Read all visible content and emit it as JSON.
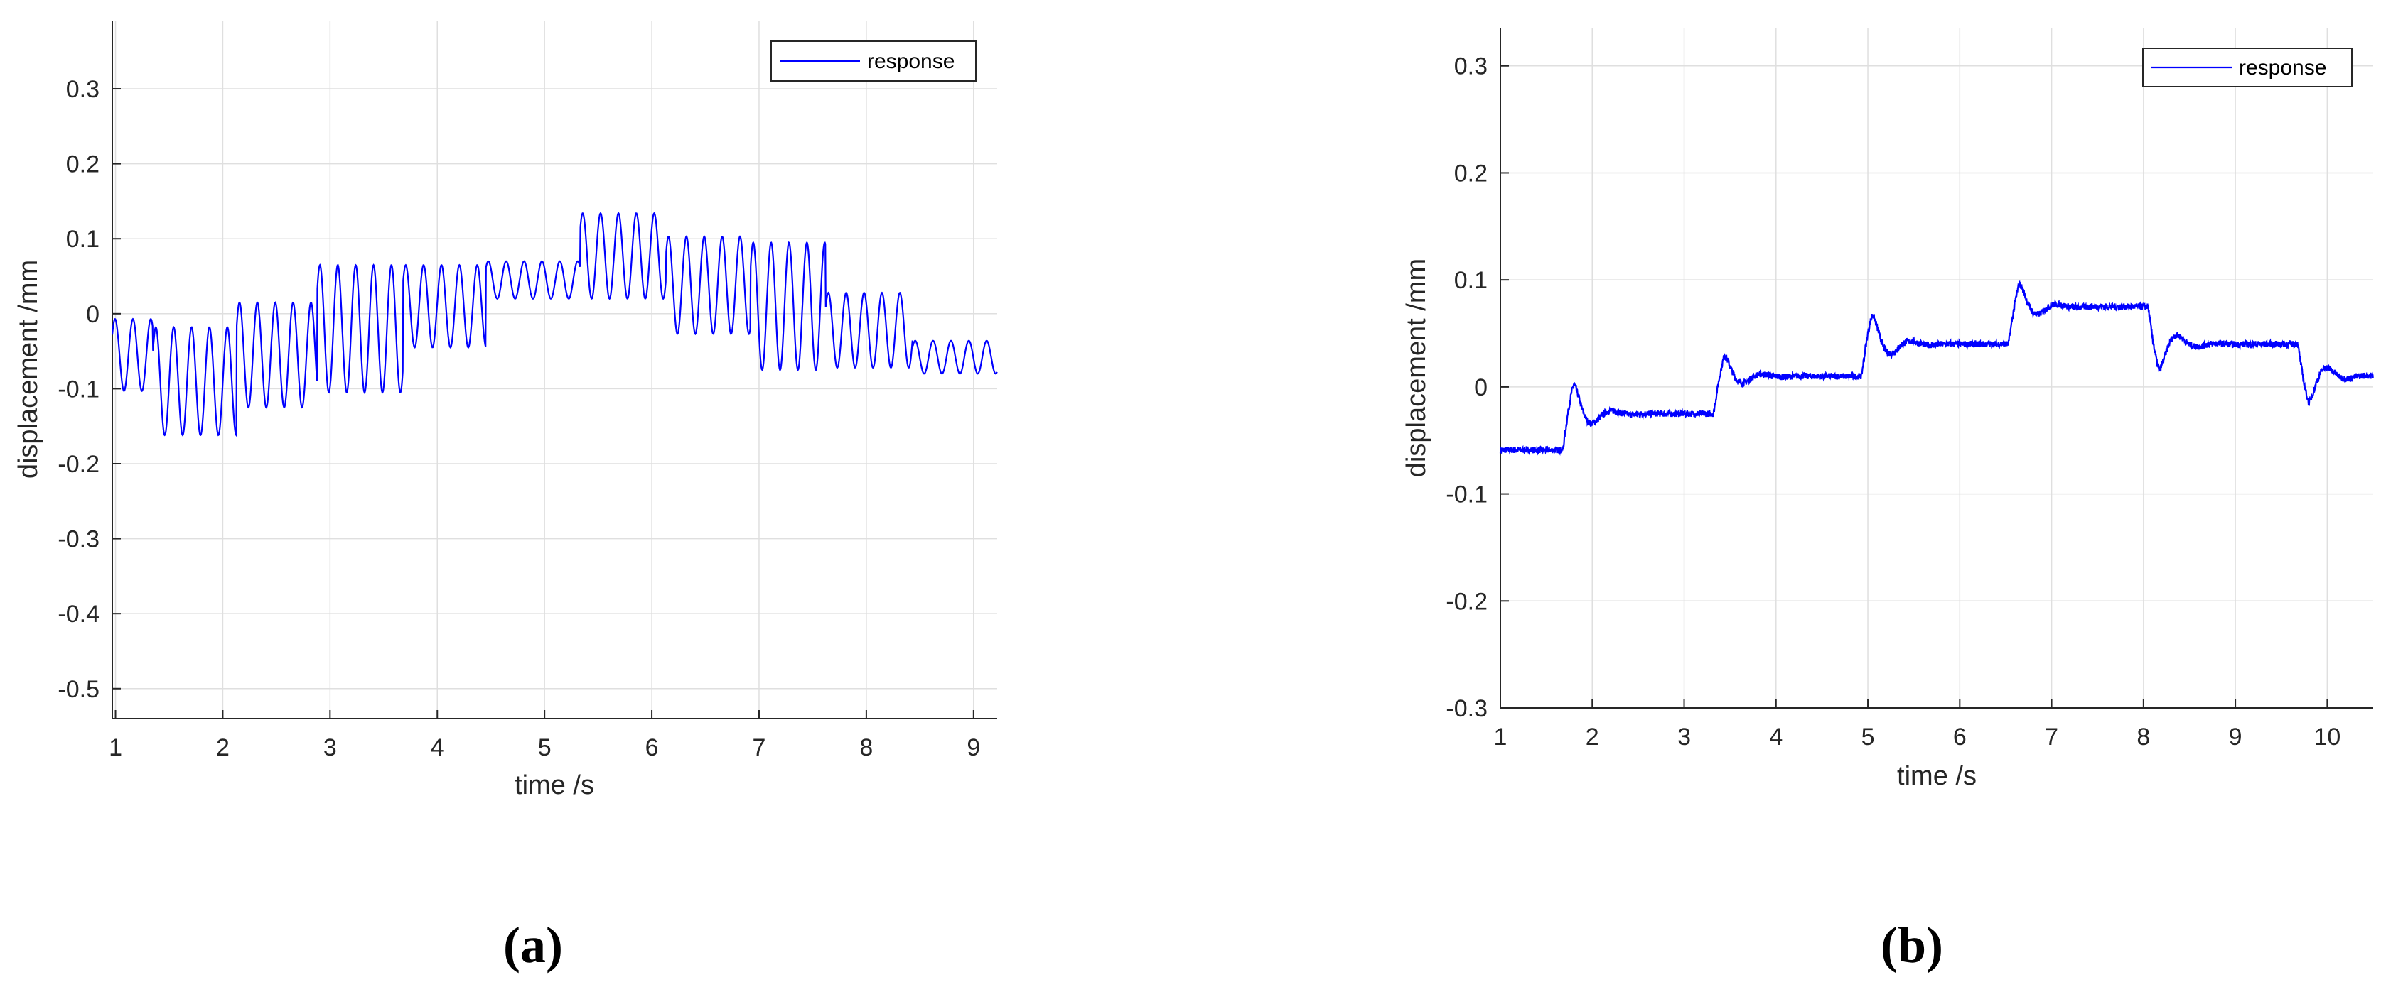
{
  "chart_data": [
    {
      "type": "line",
      "panel": "(a)",
      "xlabel": "time /s",
      "ylabel": "displacement /mm",
      "xlim": [
        0.97,
        9.22
      ],
      "ylim": [
        -0.54,
        0.39
      ],
      "xticks": [
        1,
        2,
        3,
        4,
        5,
        6,
        7,
        8,
        9
      ],
      "yticks": [
        -0.5,
        -0.4,
        -0.3,
        -0.2,
        -0.1,
        0,
        0.1,
        0.2,
        0.3
      ],
      "ytick_labels": [
        "-0.5",
        "-0.4",
        "-0.3",
        "-0.2",
        "-0.1",
        "0",
        "0.1",
        "0.2",
        "0.3"
      ],
      "grid": true,
      "legend": "top-right",
      "color": "#0000ff",
      "series": [
        {
          "name": "response",
          "oscillation_hz": 6,
          "segments": [
            {
              "t0": 0.97,
              "t1": 1.35,
              "center": -0.055,
              "amplitude": 0.048
            },
            {
              "t0": 1.35,
              "t1": 2.13,
              "center": -0.09,
              "amplitude": 0.072
            },
            {
              "t0": 2.13,
              "t1": 2.88,
              "center": -0.055,
              "amplitude": 0.07
            },
            {
              "t0": 2.88,
              "t1": 3.68,
              "center": -0.02,
              "amplitude": 0.085
            },
            {
              "t0": 3.68,
              "t1": 4.45,
              "center": 0.01,
              "amplitude": 0.055
            },
            {
              "t0": 4.45,
              "t1": 5.33,
              "center": 0.045,
              "amplitude": 0.025
            },
            {
              "t0": 5.33,
              "t1": 6.13,
              "center": 0.077,
              "amplitude": 0.057
            },
            {
              "t0": 6.13,
              "t1": 6.92,
              "center": 0.038,
              "amplitude": 0.065
            },
            {
              "t0": 6.92,
              "t1": 7.62,
              "center": 0.01,
              "amplitude": 0.085
            },
            {
              "t0": 7.62,
              "t1": 8.43,
              "center": -0.022,
              "amplitude": 0.05
            },
            {
              "t0": 8.43,
              "t1": 9.22,
              "center": -0.058,
              "amplitude": 0.022
            }
          ]
        }
      ]
    },
    {
      "type": "line",
      "panel": "(b)",
      "xlabel": "time /s",
      "ylabel": "displacement /mm",
      "xlim": [
        1,
        10.5
      ],
      "ylim": [
        -0.3,
        0.335
      ],
      "xticks": [
        1,
        2,
        3,
        4,
        5,
        6,
        7,
        8,
        9,
        10
      ],
      "yticks": [
        -0.3,
        -0.2,
        -0.1,
        0,
        0.1,
        0.2,
        0.3
      ],
      "ytick_labels": [
        "-0.3",
        "-0.2",
        "-0.1",
        "0",
        "0.1",
        "0.2",
        "0.3"
      ],
      "grid": true,
      "legend": "top-right",
      "color": "#0000ff",
      "series": [
        {
          "name": "response",
          "steps": [
            {
              "t": 1.0,
              "level": -0.059
            },
            {
              "t": 1.68,
              "level": -0.025,
              "overshoot": 0.028
            },
            {
              "t": 3.32,
              "level": 0.01,
              "overshoot": 0.02
            },
            {
              "t": 4.93,
              "level": 0.04,
              "overshoot": 0.028
            },
            {
              "t": 6.53,
              "level": 0.075,
              "overshoot": 0.022
            },
            {
              "t": 8.05,
              "level": 0.04,
              "overshoot": -0.025
            },
            {
              "t": 9.68,
              "level": 0.01,
              "overshoot": -0.025
            }
          ]
        }
      ]
    }
  ],
  "captions": [
    "(a)",
    "(b)"
  ]
}
